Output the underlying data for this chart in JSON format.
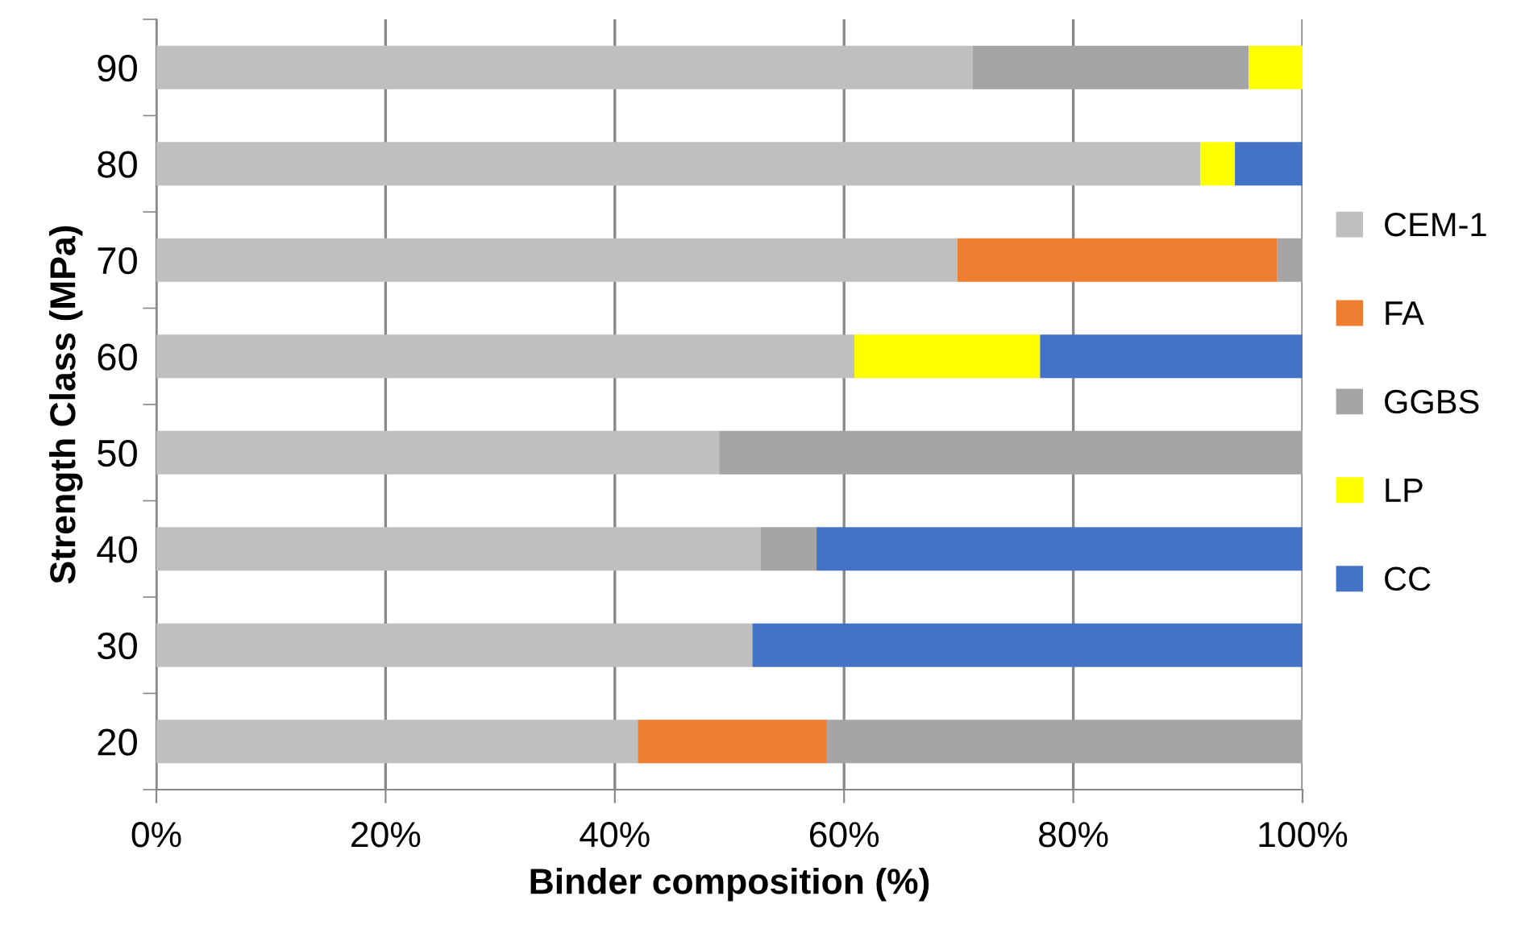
{
  "chart_data": {
    "type": "bar",
    "orientation": "horizontal",
    "stacked": true,
    "xlabel": "Binder composition (%)",
    "ylabel": "Strength Class (MPa)",
    "categories": [
      "90",
      "80",
      "70",
      "60",
      "50",
      "40",
      "30",
      "20"
    ],
    "series": [
      {
        "name": "CEM-1",
        "color": "#bfbfbf",
        "values": [
          71.2,
          91.1,
          69.9,
          60.9,
          49.1,
          52.7,
          52.0,
          42.0
        ]
      },
      {
        "name": "FA",
        "color": "#ed7d31",
        "values": [
          0,
          0,
          27.9,
          0,
          0,
          0,
          0,
          16.5
        ]
      },
      {
        "name": "GGBS",
        "color": "#a5a5a5",
        "values": [
          24.1,
          0,
          2.2,
          0,
          50.9,
          4.9,
          0,
          41.5
        ]
      },
      {
        "name": "LP",
        "color": "#ffff00",
        "values": [
          4.7,
          3.0,
          0,
          16.2,
          0,
          0,
          0,
          0
        ]
      },
      {
        "name": "CC",
        "color": "#4472c4",
        "values": [
          0,
          5.9,
          0,
          22.9,
          0,
          42.4,
          48.0,
          0
        ]
      }
    ],
    "xlim": [
      0,
      100
    ],
    "xticks": [
      {
        "value": 0,
        "label": "0%"
      },
      {
        "value": 20,
        "label": "20%"
      },
      {
        "value": 40,
        "label": "40%"
      },
      {
        "value": 60,
        "label": "60%"
      },
      {
        "value": 80,
        "label": "80%"
      },
      {
        "value": 100,
        "label": "100%"
      }
    ],
    "grid": "x",
    "legend": "right"
  }
}
